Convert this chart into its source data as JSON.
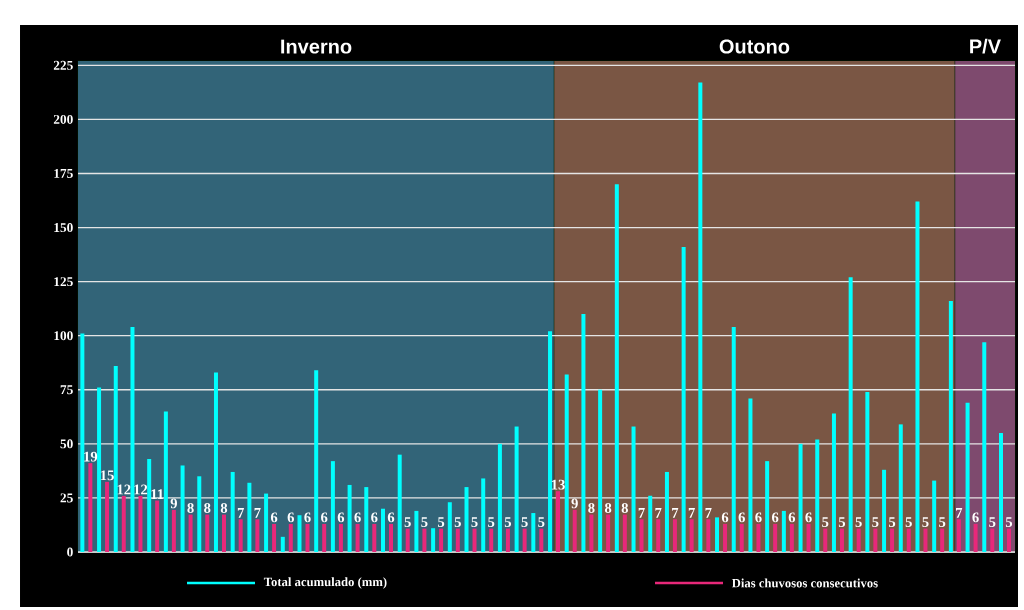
{
  "chart_data": {
    "type": "bar",
    "categories": [
      null,
      null,
      null,
      null,
      null,
      null,
      null,
      null,
      null,
      null,
      null,
      null,
      null,
      null,
      null,
      null,
      null,
      null,
      null,
      null,
      null,
      null,
      null,
      null,
      null,
      null,
      null,
      null,
      null,
      null,
      null,
      null,
      null,
      null,
      null,
      null,
      null,
      null,
      null,
      null,
      null,
      null,
      null,
      null,
      null,
      null,
      null,
      null,
      null,
      null,
      null,
      null,
      null,
      null,
      null,
      null
    ],
    "series": [
      {
        "name": "Total acumulado (mm)",
        "color": "#00ffff",
        "values": [
          101,
          76,
          86,
          104,
          43,
          65,
          40,
          35,
          83,
          37,
          32,
          27,
          7,
          17,
          84,
          42,
          31,
          30,
          20,
          45,
          19,
          11,
          23,
          30,
          34,
          50,
          58,
          18,
          102,
          82,
          110,
          75,
          170,
          58,
          26,
          37,
          141,
          217,
          16,
          104,
          71,
          42,
          19,
          50,
          52,
          64,
          127,
          74,
          38,
          59,
          162,
          33,
          116,
          69,
          97,
          55
        ]
      },
      {
        "name": "Dias chuvosos consecutivos",
        "color": "#e8287a",
        "axis": "y2",
        "data_labels": true,
        "values": [
          19,
          15,
          12,
          12,
          11,
          9,
          8,
          8,
          8,
          7,
          7,
          6,
          6,
          6,
          6,
          6,
          6,
          6,
          6,
          5,
          5,
          5,
          5,
          5,
          5,
          5,
          5,
          5,
          13,
          9,
          8,
          8,
          8,
          7,
          7,
          7,
          7,
          7,
          6,
          6,
          6,
          6,
          6,
          6,
          5,
          5,
          5,
          5,
          5,
          5,
          5,
          5,
          7,
          6,
          5,
          5
        ]
      }
    ],
    "ylim": [
      0,
      227
    ],
    "yticks": [
      0,
      25,
      50,
      75,
      100,
      125,
      150,
      175,
      200,
      225
    ],
    "y2lim": [
      0,
      105
    ],
    "tick_labels": "y",
    "grid": "y",
    "legend": "bottom",
    "annotations": [
      "Inverno",
      "Outono",
      "P/V"
    ]
  }
}
